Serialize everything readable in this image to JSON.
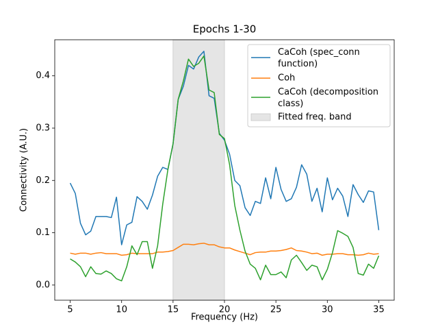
{
  "chart_data": {
    "type": "line",
    "title": "Epochs 1-30",
    "xlabel": "Frequency (Hz)",
    "ylabel": "Connectivity (A.U.)",
    "x": [
      5,
      5.5,
      6,
      6.5,
      7,
      7.5,
      8,
      8.5,
      9,
      9.5,
      10,
      10.5,
      11,
      11.5,
      12,
      12.5,
      13,
      13.5,
      14,
      14.5,
      15,
      15.5,
      16,
      16.5,
      17,
      17.5,
      18,
      18.5,
      19,
      19.5,
      20,
      20.5,
      21,
      21.5,
      22,
      22.5,
      23,
      23.5,
      24,
      24.5,
      25,
      25.5,
      26,
      26.5,
      27,
      27.5,
      28,
      28.5,
      29,
      29.5,
      30,
      30.5,
      31,
      31.5,
      32,
      32.5,
      33,
      33.5,
      34,
      34.5,
      35
    ],
    "series": [
      {
        "name": "CaCoh (spec_conn\nfunction)",
        "color": "#1f77b4",
        "values": [
          0.195,
          0.175,
          0.118,
          0.096,
          0.103,
          0.131,
          0.131,
          0.131,
          0.129,
          0.168,
          0.077,
          0.115,
          0.12,
          0.169,
          0.16,
          0.145,
          0.172,
          0.208,
          0.225,
          0.221,
          0.27,
          0.355,
          0.38,
          0.42,
          0.413,
          0.436,
          0.447,
          0.362,
          0.357,
          0.29,
          0.277,
          0.25,
          0.2,
          0.19,
          0.148,
          0.133,
          0.16,
          0.156,
          0.205,
          0.165,
          0.225,
          0.183,
          0.16,
          0.165,
          0.187,
          0.23,
          0.212,
          0.16,
          0.185,
          0.14,
          0.205,
          0.163,
          0.185,
          0.17,
          0.131,
          0.192,
          0.173,
          0.158,
          0.18,
          0.178,
          0.105
        ]
      },
      {
        "name": "Coh",
        "color": "#ff7f0e",
        "values": [
          0.061,
          0.059,
          0.061,
          0.061,
          0.059,
          0.061,
          0.062,
          0.06,
          0.06,
          0.06,
          0.057,
          0.058,
          0.061,
          0.06,
          0.06,
          0.06,
          0.06,
          0.063,
          0.063,
          0.064,
          0.066,
          0.072,
          0.078,
          0.078,
          0.077,
          0.079,
          0.08,
          0.077,
          0.077,
          0.073,
          0.071,
          0.071,
          0.067,
          0.064,
          0.061,
          0.058,
          0.062,
          0.063,
          0.063,
          0.065,
          0.065,
          0.066,
          0.068,
          0.071,
          0.066,
          0.065,
          0.063,
          0.06,
          0.061,
          0.057,
          0.059,
          0.059,
          0.06,
          0.06,
          0.058,
          0.058,
          0.057,
          0.058,
          0.061,
          0.059,
          0.06
        ]
      },
      {
        "name": "CaCoh (decomposition\nclass)",
        "color": "#2ca02c",
        "values": [
          0.05,
          0.044,
          0.035,
          0.016,
          0.035,
          0.022,
          0.021,
          0.027,
          0.022,
          0.012,
          0.008,
          0.035,
          0.075,
          0.058,
          0.083,
          0.083,
          0.032,
          0.075,
          0.155,
          0.221,
          0.27,
          0.355,
          0.39,
          0.432,
          0.418,
          0.424,
          0.438,
          0.373,
          0.368,
          0.288,
          0.28,
          0.23,
          0.152,
          0.105,
          0.065,
          0.04,
          0.032,
          0.01,
          0.038,
          0.02,
          0.02,
          0.025,
          0.014,
          0.048,
          0.057,
          0.043,
          0.028,
          0.038,
          0.035,
          0.01,
          0.03,
          0.062,
          0.104,
          0.099,
          0.093,
          0.072,
          0.022,
          0.019,
          0.04,
          0.032,
          0.056
        ]
      }
    ],
    "band": {
      "name": "Fitted freq. band",
      "range": [
        15,
        20
      ],
      "color": "#e5e5e5"
    },
    "xlim": [
      3.5,
      36.5
    ],
    "ylim": [
      -0.029,
      0.469
    ],
    "xticks": [
      5,
      10,
      15,
      20,
      25,
      30,
      35
    ],
    "yticks": [
      {
        "value": 0,
        "label": "0.0"
      },
      0.1,
      0.2,
      0.3,
      0.4
    ],
    "legend": "upper right"
  }
}
